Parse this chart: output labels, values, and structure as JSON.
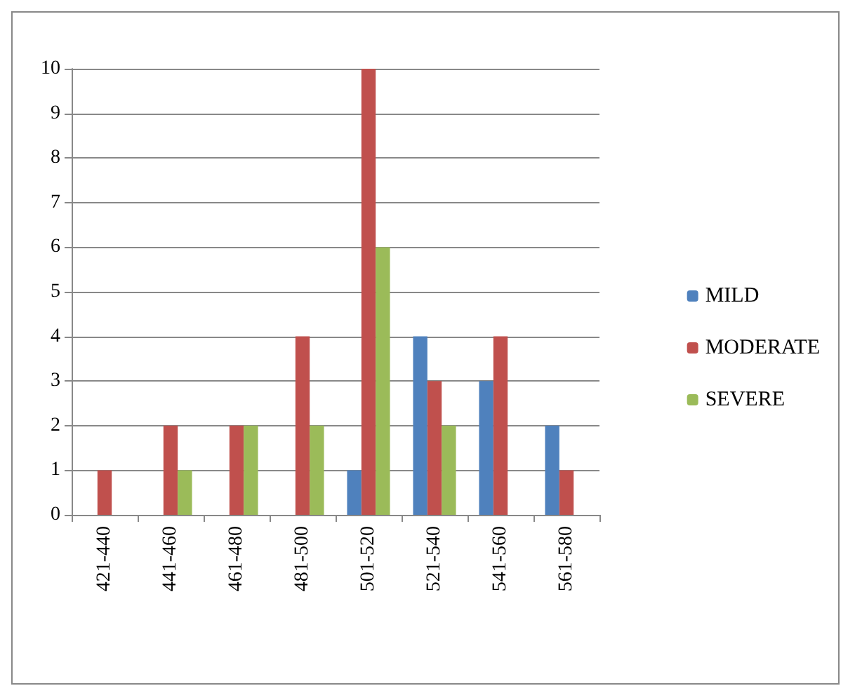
{
  "chart_data": {
    "type": "bar",
    "categories": [
      "421-440",
      "441-460",
      "461-480",
      "481-500",
      "501-520",
      "521-540",
      "541-560",
      "561-580"
    ],
    "series": [
      {
        "name": "MILD",
        "color": "#4f81bd",
        "values": [
          0,
          0,
          0,
          0,
          1,
          4,
          3,
          2
        ]
      },
      {
        "name": "MODERATE",
        "color": "#c0504d",
        "values": [
          1,
          2,
          2,
          4,
          10,
          3,
          4,
          1
        ]
      },
      {
        "name": "SEVERE",
        "color": "#9bbb59",
        "values": [
          0,
          1,
          2,
          2,
          6,
          2,
          0,
          0
        ]
      }
    ],
    "ylim": [
      0,
      10
    ],
    "yticks": [
      0,
      1,
      2,
      3,
      4,
      5,
      6,
      7,
      8,
      9,
      10
    ],
    "grid": "y",
    "legend": "right"
  }
}
